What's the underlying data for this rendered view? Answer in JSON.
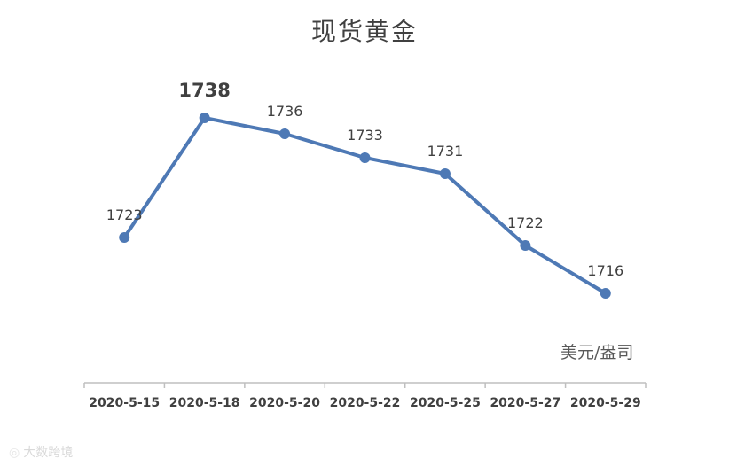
{
  "watermark": {
    "icon": "camera-icon",
    "text": "大数跨境"
  },
  "chart_data": {
    "type": "line",
    "title": "现货黄金",
    "unit_label": "美元/盎司",
    "categories": [
      "2020-5-15",
      "2020-5-18",
      "2020-5-20",
      "2020-5-22",
      "2020-5-25",
      "2020-5-27",
      "2020-5-29"
    ],
    "series": [
      {
        "values": [
          1723,
          1738,
          1736,
          1733,
          1731,
          1722,
          1716
        ]
      }
    ],
    "data_labels": [
      "1723",
      "1738",
      "1736",
      "1733",
      "1731",
      "1722",
      "1716"
    ],
    "highlight_index": 1,
    "ylim": [
      1700,
      1745
    ],
    "grid": false,
    "legend": "none",
    "colors": {
      "line": "#4e79b5",
      "text": "#404040",
      "axis": "#bfbfbf"
    }
  }
}
